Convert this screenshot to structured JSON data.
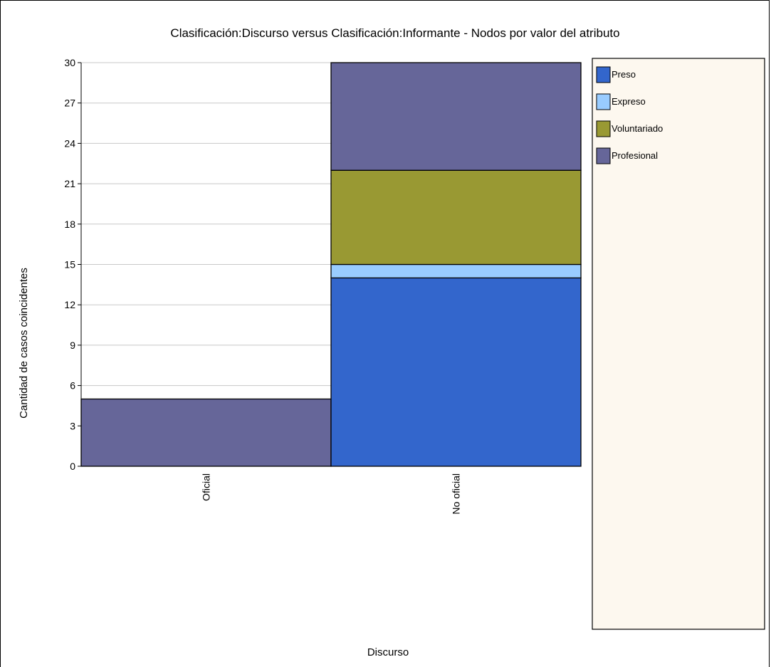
{
  "chart_data": {
    "type": "bar",
    "stacked": true,
    "title": "Clasificación:Discurso versus Clasificación:Informante - Nodos por valor del atributo",
    "xlabel": "Discurso",
    "ylabel": "Cantidad de casos coincidentes",
    "categories": [
      "Oficial",
      "No oficial"
    ],
    "ylim": [
      0,
      30
    ],
    "yticks": [
      "0",
      "3",
      "6",
      "9",
      "12",
      "15",
      "18",
      "21",
      "24",
      "27",
      "30"
    ],
    "grid": true,
    "legend_position": "right",
    "series": [
      {
        "name": "Preso",
        "color": "#3366cc",
        "values": [
          0,
          14
        ]
      },
      {
        "name": "Expreso",
        "color": "#99ccff",
        "values": [
          0,
          1
        ]
      },
      {
        "name": "Voluntariado",
        "color": "#999933",
        "values": [
          0,
          7
        ]
      },
      {
        "name": "Profesional",
        "color": "#666699",
        "values": [
          5,
          8
        ]
      }
    ]
  }
}
